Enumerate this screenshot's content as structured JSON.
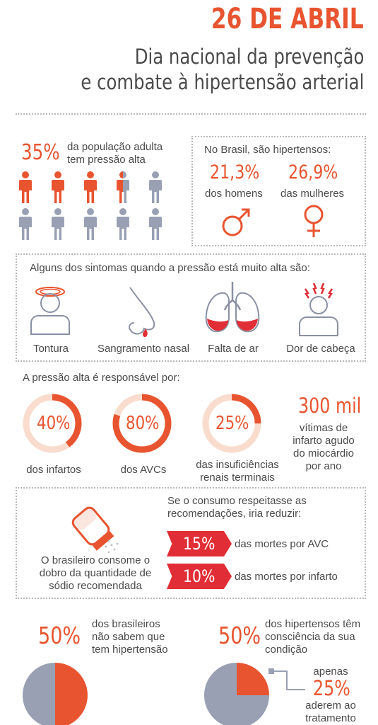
{
  "header": {
    "date": "26 DE ABRIL",
    "title_line1": "Dia nacional da prevenção",
    "title_line2": "e combate à hipertensão arterial"
  },
  "population": {
    "percent": "35%",
    "text_line1": "da população adulta",
    "text_line2": "tem pressão alta",
    "share": 0.35
  },
  "brazil": {
    "heading": "No Brasil, são hipertensos:",
    "men_pct": "21,3%",
    "men_label": "dos homens",
    "women_pct": "26,9%",
    "women_label": "das mulheres"
  },
  "symptoms": {
    "heading": "Alguns dos sintomas quando a pressão está muito alta são:",
    "items": [
      {
        "label": "Tontura",
        "icon": "dizzy-head-icon"
      },
      {
        "label": "Sangramento nasal",
        "icon": "nosebleed-icon"
      },
      {
        "label": "Falta de ar",
        "icon": "lungs-icon"
      },
      {
        "label": "Dor de cabeça",
        "icon": "headache-icon"
      }
    ]
  },
  "responsible": {
    "heading": "A pressão alta é responsável por:",
    "items": [
      {
        "pct": "40%",
        "value": 40,
        "label_line1": "dos infartos",
        "label_line2": ""
      },
      {
        "pct": "80%",
        "value": 80,
        "label_line1": "dos AVCs",
        "label_line2": ""
      },
      {
        "pct": "25%",
        "value": 25,
        "label_line1": "das insuficiências",
        "label_line2": "renais terminais"
      }
    ],
    "victims_number": "300 mil",
    "victims_line1": "vítimas de",
    "victims_line2": "infarto agudo",
    "victims_line3": "do miocárdio",
    "victims_line4": "por ano"
  },
  "sodium": {
    "left_line1": "O brasileiro consome o",
    "left_line2": "dobro da quantidade de",
    "left_line3": "sódio recomendada",
    "right_line1": "Se o consumo respeitasse as",
    "right_line2": "recomendações, iria reduzir:",
    "reductions": [
      {
        "pct": "15%",
        "label": "das mortes por AVC"
      },
      {
        "pct": "10%",
        "label": "das mortes por infarto"
      }
    ]
  },
  "awareness": {
    "left_pct": "50%",
    "left_line1": "dos brasileiros",
    "left_line2": "não sabem que",
    "left_line3": "tem hipertensão",
    "left_share": 0.5,
    "right_pct": "50%",
    "right_line1": "dos hipertensos têm",
    "right_line2": "consciência da sua",
    "right_line3": "condição",
    "right_share": 0.25,
    "only": "apenas",
    "treat_pct": "25%",
    "treat_line1": "aderem ao",
    "treat_line2": "tratamento"
  },
  "colors": {
    "accent": "#e8542f",
    "accent_dark": "#e12e36",
    "grey": "#9aa0b4",
    "ring_light": "#f9dccd"
  }
}
